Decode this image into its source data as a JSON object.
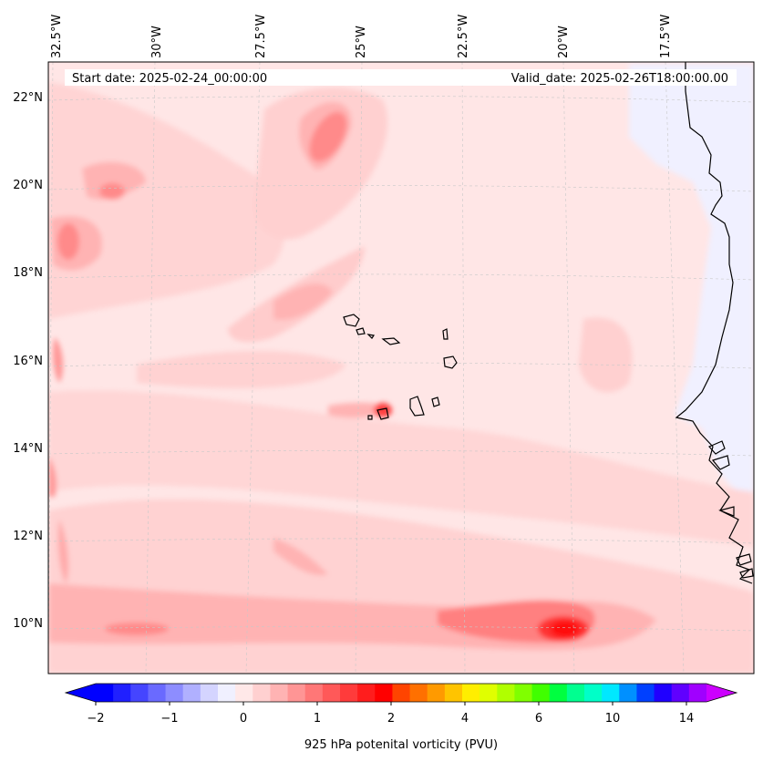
{
  "header": {
    "start_date": "Start date: 2025-02-24_00:00:00",
    "valid_date": "Valid_date: 2025-02-26T18:00:00.00"
  },
  "map": {
    "lon_labels": [
      "32.5°W",
      "30°W",
      "27.5°W",
      "25°W",
      "22.5°W",
      "20°W",
      "17.5°W"
    ],
    "lat_labels": [
      "22°N",
      "20°N",
      "18°N",
      "16°N",
      "14°N",
      "12°N",
      "10°N"
    ],
    "lon_range": [
      -33,
      -16
    ],
    "lat_range": [
      9,
      23
    ],
    "gridlines": true,
    "field": "925 hPa potential vorticity"
  },
  "colorbar": {
    "label": "925 hPa potenital vorticity (PVU)",
    "tick_labels": [
      "−2",
      "−1",
      "0",
      "1",
      "2",
      "4",
      "6",
      "10",
      "14"
    ],
    "colors": [
      "#0000ff",
      "#2020ff",
      "#4545ff",
      "#6a6aff",
      "#8d8dff",
      "#b0b0ff",
      "#d4d4ff",
      "#f0f0ff",
      "#ffe8e8",
      "#ffd0d0",
      "#ffb3b3",
      "#ff9595",
      "#ff7777",
      "#ff5959",
      "#ff3b3b",
      "#ff1d1d",
      "#ff0000",
      "#ff4400",
      "#ff7000",
      "#ff9a00",
      "#ffc400",
      "#ffee00",
      "#e0ff00",
      "#b0ff00",
      "#80ff00",
      "#40ff00",
      "#00ff40",
      "#00ff90",
      "#00ffc8",
      "#00e8ff",
      "#0090ff",
      "#0040ff",
      "#2000ff",
      "#6000ff",
      "#a000ff"
    ],
    "extend_min_color": "#0000ff",
    "extend_max_color": "#cc00ff"
  }
}
